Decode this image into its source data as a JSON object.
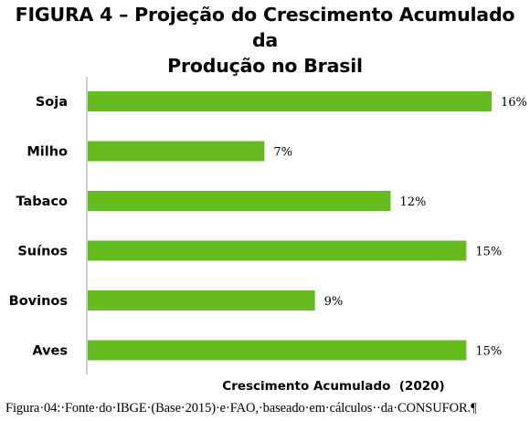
{
  "title": {
    "line1": "FIGURA 4 – Projeção do Crescimento Acumulado da",
    "line2": "Produção no Brasil"
  },
  "caption": "Figura·04:·Fonte·do·IBGE·(Base·2015)·e·FAO,·baseado·em·cálculos··da·CONSUFOR.¶",
  "chart_data": {
    "type": "bar",
    "orientation": "horizontal",
    "categories": [
      "Soja",
      "Milho",
      "Tabaco",
      "Suínos",
      "Bovinos",
      "Aves"
    ],
    "values": [
      16,
      7,
      12,
      15,
      9,
      15
    ],
    "value_labels": [
      "16%",
      "7%",
      "12%",
      "15%",
      "9%",
      "15%"
    ],
    "xlabel": "Crescimento Acumulado  (2020)",
    "xlim": [
      0,
      16
    ],
    "grid": false,
    "legend": "none",
    "bar_color": "#66bb1e"
  }
}
